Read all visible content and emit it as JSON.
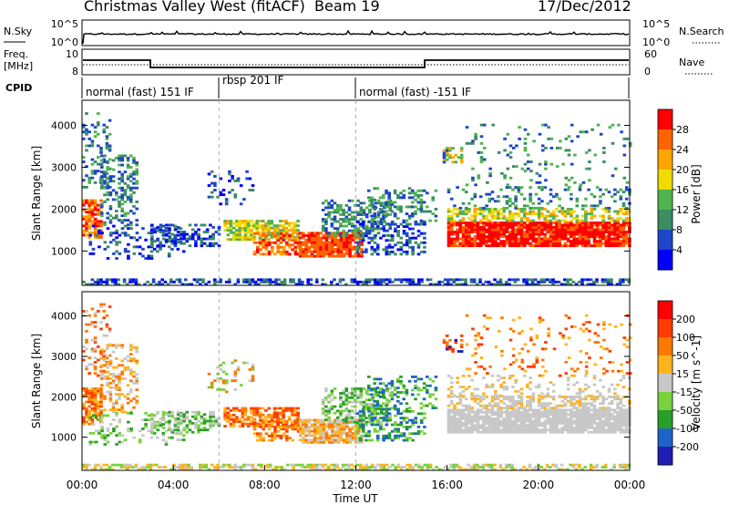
{
  "header": {
    "station": "Christmas Valley West (fitACF)",
    "beam": "Beam 19",
    "date": "17/Dec/2012"
  },
  "rows": {
    "nsky_label": "N.Sky",
    "nsky_ticks": [
      "10^5",
      "10^0"
    ],
    "nsearch_label": "N.Search",
    "nsearch_ticks": [
      "10^5",
      "10^0"
    ],
    "freq_label_1": "Freq.",
    "freq_label_2": "[MHz]",
    "freq_ticks": [
      "10",
      "8"
    ],
    "nave_label": "Nave",
    "nave_ticks": [
      "60",
      "0"
    ],
    "cpid_label": "CPID",
    "cpid_segments": [
      "normal (fast) 151 IF",
      "rbsp 201 IF",
      "normal (fast) -151 IF"
    ]
  },
  "colors": {
    "power": [
      "#0000ff",
      "#1e46c8",
      "#3c8c64",
      "#50b450",
      "#f0dc00",
      "#ffa500",
      "#ff6400",
      "#ff0000"
    ],
    "velocity": [
      "#1e1eb4",
      "#1e64c8",
      "#28a028",
      "#78d23c",
      "#c8c8c8",
      "#ffb41e",
      "#ff7800",
      "#ff3c00",
      "#ff0000"
    ]
  },
  "chart_data": [
    {
      "type": "heatmap",
      "title": "Power",
      "xlabel": "Time UT",
      "ylabel": "Slant Range [km]",
      "x_ticks": [
        "00:00",
        "04:00",
        "08:00",
        "12:00",
        "16:00",
        "20:00",
        "00:00"
      ],
      "x_range_hours": [
        0,
        24
      ],
      "ylim": [
        180,
        4600
      ],
      "y_ticks": [
        1000,
        2000,
        3000,
        4000
      ],
      "colorbar_label": "Power [dB]",
      "colorbar_ticks": [
        "4",
        "8",
        "12",
        "16",
        "20",
        "24",
        "28"
      ],
      "colorbar_range": [
        0,
        32
      ],
      "grid": false
    },
    {
      "type": "heatmap",
      "title": "Velocity",
      "xlabel": "Time UT",
      "ylabel": "Slant Range [km]",
      "x_ticks": [
        "00:00",
        "04:00",
        "08:00",
        "12:00",
        "16:00",
        "20:00",
        "00:00"
      ],
      "x_range_hours": [
        0,
        24
      ],
      "ylim": [
        180,
        4600
      ],
      "y_ticks": [
        1000,
        2000,
        3000,
        4000
      ],
      "colorbar_label": "Velocity [m s^-1]",
      "colorbar_ticks": [
        "200",
        "100",
        "50",
        "15",
        "-15",
        "-50",
        "-100",
        "-200"
      ],
      "grid": false
    }
  ]
}
